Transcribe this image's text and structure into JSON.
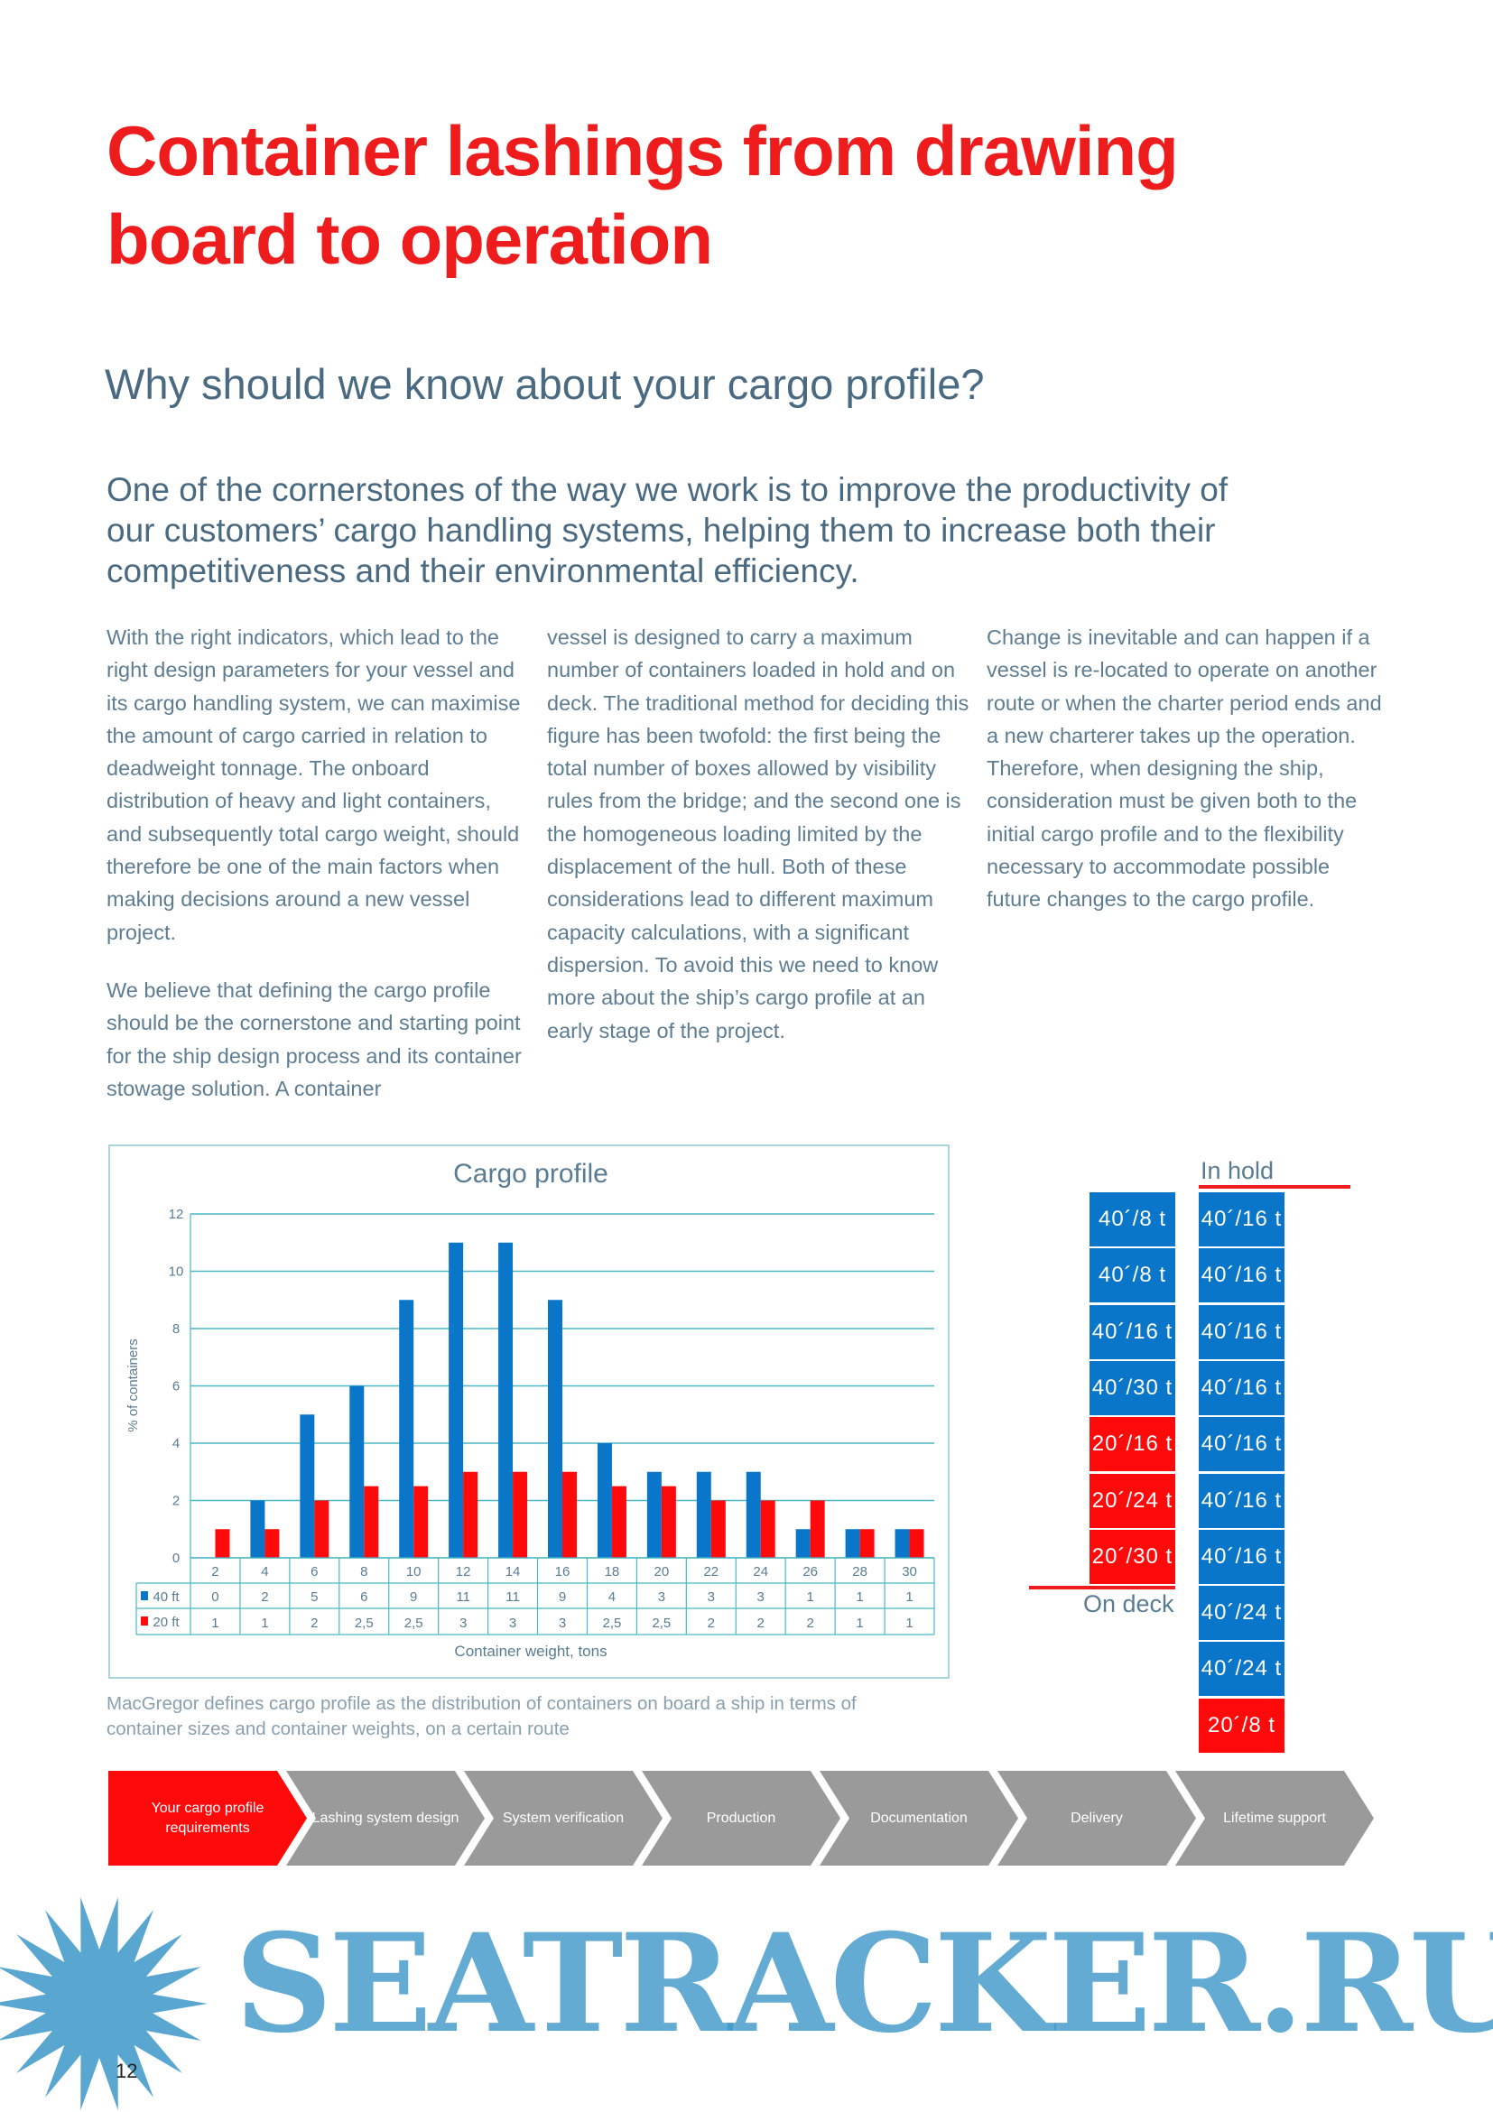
{
  "title": "Container lashings from drawing board to operation",
  "subtitle": "Why should we know about your cargo profile?",
  "intro": "One of the cornerstones of the way we work is to improve the productivity of our customers’ cargo handling systems, helping them to increase both their competitiveness and their environmental efficiency.",
  "columns": [
    [
      "With the right indicators, which lead to the right design parameters for your vessel and its cargo handling system, we can maximise the amount of cargo carried in relation to deadweight tonnage. The onboard distribution of heavy and light containers, and subsequently total cargo weight, should therefore be one of the main factors when making decisions around a new vessel project.",
      "We believe that defining the cargo profile should be the cornerstone and starting point for the ship design process and its container stowage solution. A container"
    ],
    [
      "vessel is designed to carry a maximum number of containers loaded in hold and on deck. The traditional method for deciding this figure has been twofold: the first being the total number of boxes allowed by visibility rules from the bridge; and the second one is the homogeneous loading limited by the displacement of the hull. Both of these considerations lead to different maximum capacity calculations, with a significant dispersion. To avoid this we need to know more about the ship’s cargo profile at an early stage of the project."
    ],
    [
      "Change is inevitable and can happen if a vessel is re-located to operate on another route or when the charter period ends and a new charterer takes up the operation. Therefore, when designing the ship, consideration must be given both to the initial cargo profile and to the flexibility necessary to accommodate possible future changes to the cargo profile."
    ]
  ],
  "chart_data": {
    "type": "bar",
    "title": "Cargo profile",
    "xlabel": "Container weight, tons",
    "ylabel": "% of containers",
    "ylim": [
      0,
      12
    ],
    "yticks": [
      0,
      2,
      4,
      6,
      8,
      10,
      12
    ],
    "grid": true,
    "legend": "table-left",
    "categories": [
      "2",
      "4",
      "6",
      "8",
      "10",
      "12",
      "14",
      "16",
      "18",
      "20",
      "22",
      "24",
      "26",
      "28",
      "30"
    ],
    "series": [
      {
        "name": "40 ft",
        "color": "#0a76c9",
        "values": [
          0,
          2,
          5,
          6,
          9,
          11,
          11,
          9,
          4,
          3,
          3,
          3,
          1,
          1,
          1
        ],
        "labels": [
          "0",
          "2",
          "5",
          "6",
          "9",
          "11",
          "11",
          "9",
          "4",
          "3",
          "3",
          "3",
          "1",
          "1",
          "1"
        ]
      },
      {
        "name": "20 ft",
        "color": "#ff0a0a",
        "values": [
          1,
          1,
          2,
          2.5,
          2.5,
          3,
          3,
          3,
          2.5,
          2.5,
          2,
          2,
          2,
          1,
          1
        ],
        "labels": [
          "1",
          "1",
          "2",
          "2,5",
          "2,5",
          "3",
          "3",
          "3",
          "2,5",
          "2,5",
          "2",
          "2",
          "2",
          "1",
          "1"
        ]
      }
    ]
  },
  "caption": "MacGregor defines cargo profile as the distribution of containers on board a ship in terms of container sizes and container weights, on a certain route",
  "stack": {
    "in_hold_label": "In hold",
    "on_deck_label": "On deck",
    "left": [
      {
        "text": "40´/8 t",
        "type": "blue"
      },
      {
        "text": "40´/8 t",
        "type": "blue"
      },
      {
        "text": "40´/16 t",
        "type": "blue"
      },
      {
        "text": "40´/30 t",
        "type": "blue"
      },
      {
        "text": "20´/16 t",
        "type": "red"
      },
      {
        "text": "20´/24 t",
        "type": "red"
      },
      {
        "text": "20´/30 t",
        "type": "red"
      }
    ],
    "right": [
      {
        "text": "40´/16 t",
        "type": "blue"
      },
      {
        "text": "40´/16 t",
        "type": "blue"
      },
      {
        "text": "40´/16 t",
        "type": "blue"
      },
      {
        "text": "40´/16 t",
        "type": "blue"
      },
      {
        "text": "40´/16 t",
        "type": "blue"
      },
      {
        "text": "40´/16 t",
        "type": "blue"
      },
      {
        "text": "40´/16 t",
        "type": "blue"
      },
      {
        "text": "40´/24 t",
        "type": "blue"
      },
      {
        "text": "40´/24 t",
        "type": "blue"
      },
      {
        "text": "20´/8 t",
        "type": "red"
      }
    ]
  },
  "process": [
    "Your cargo profile requirements",
    "Lashing system design",
    "System verification",
    "Production",
    "Documentation",
    "Delivery",
    "Lifetime support"
  ],
  "process_active": 0,
  "watermark": "SEATRACKER.RU",
  "page_number": "12"
}
